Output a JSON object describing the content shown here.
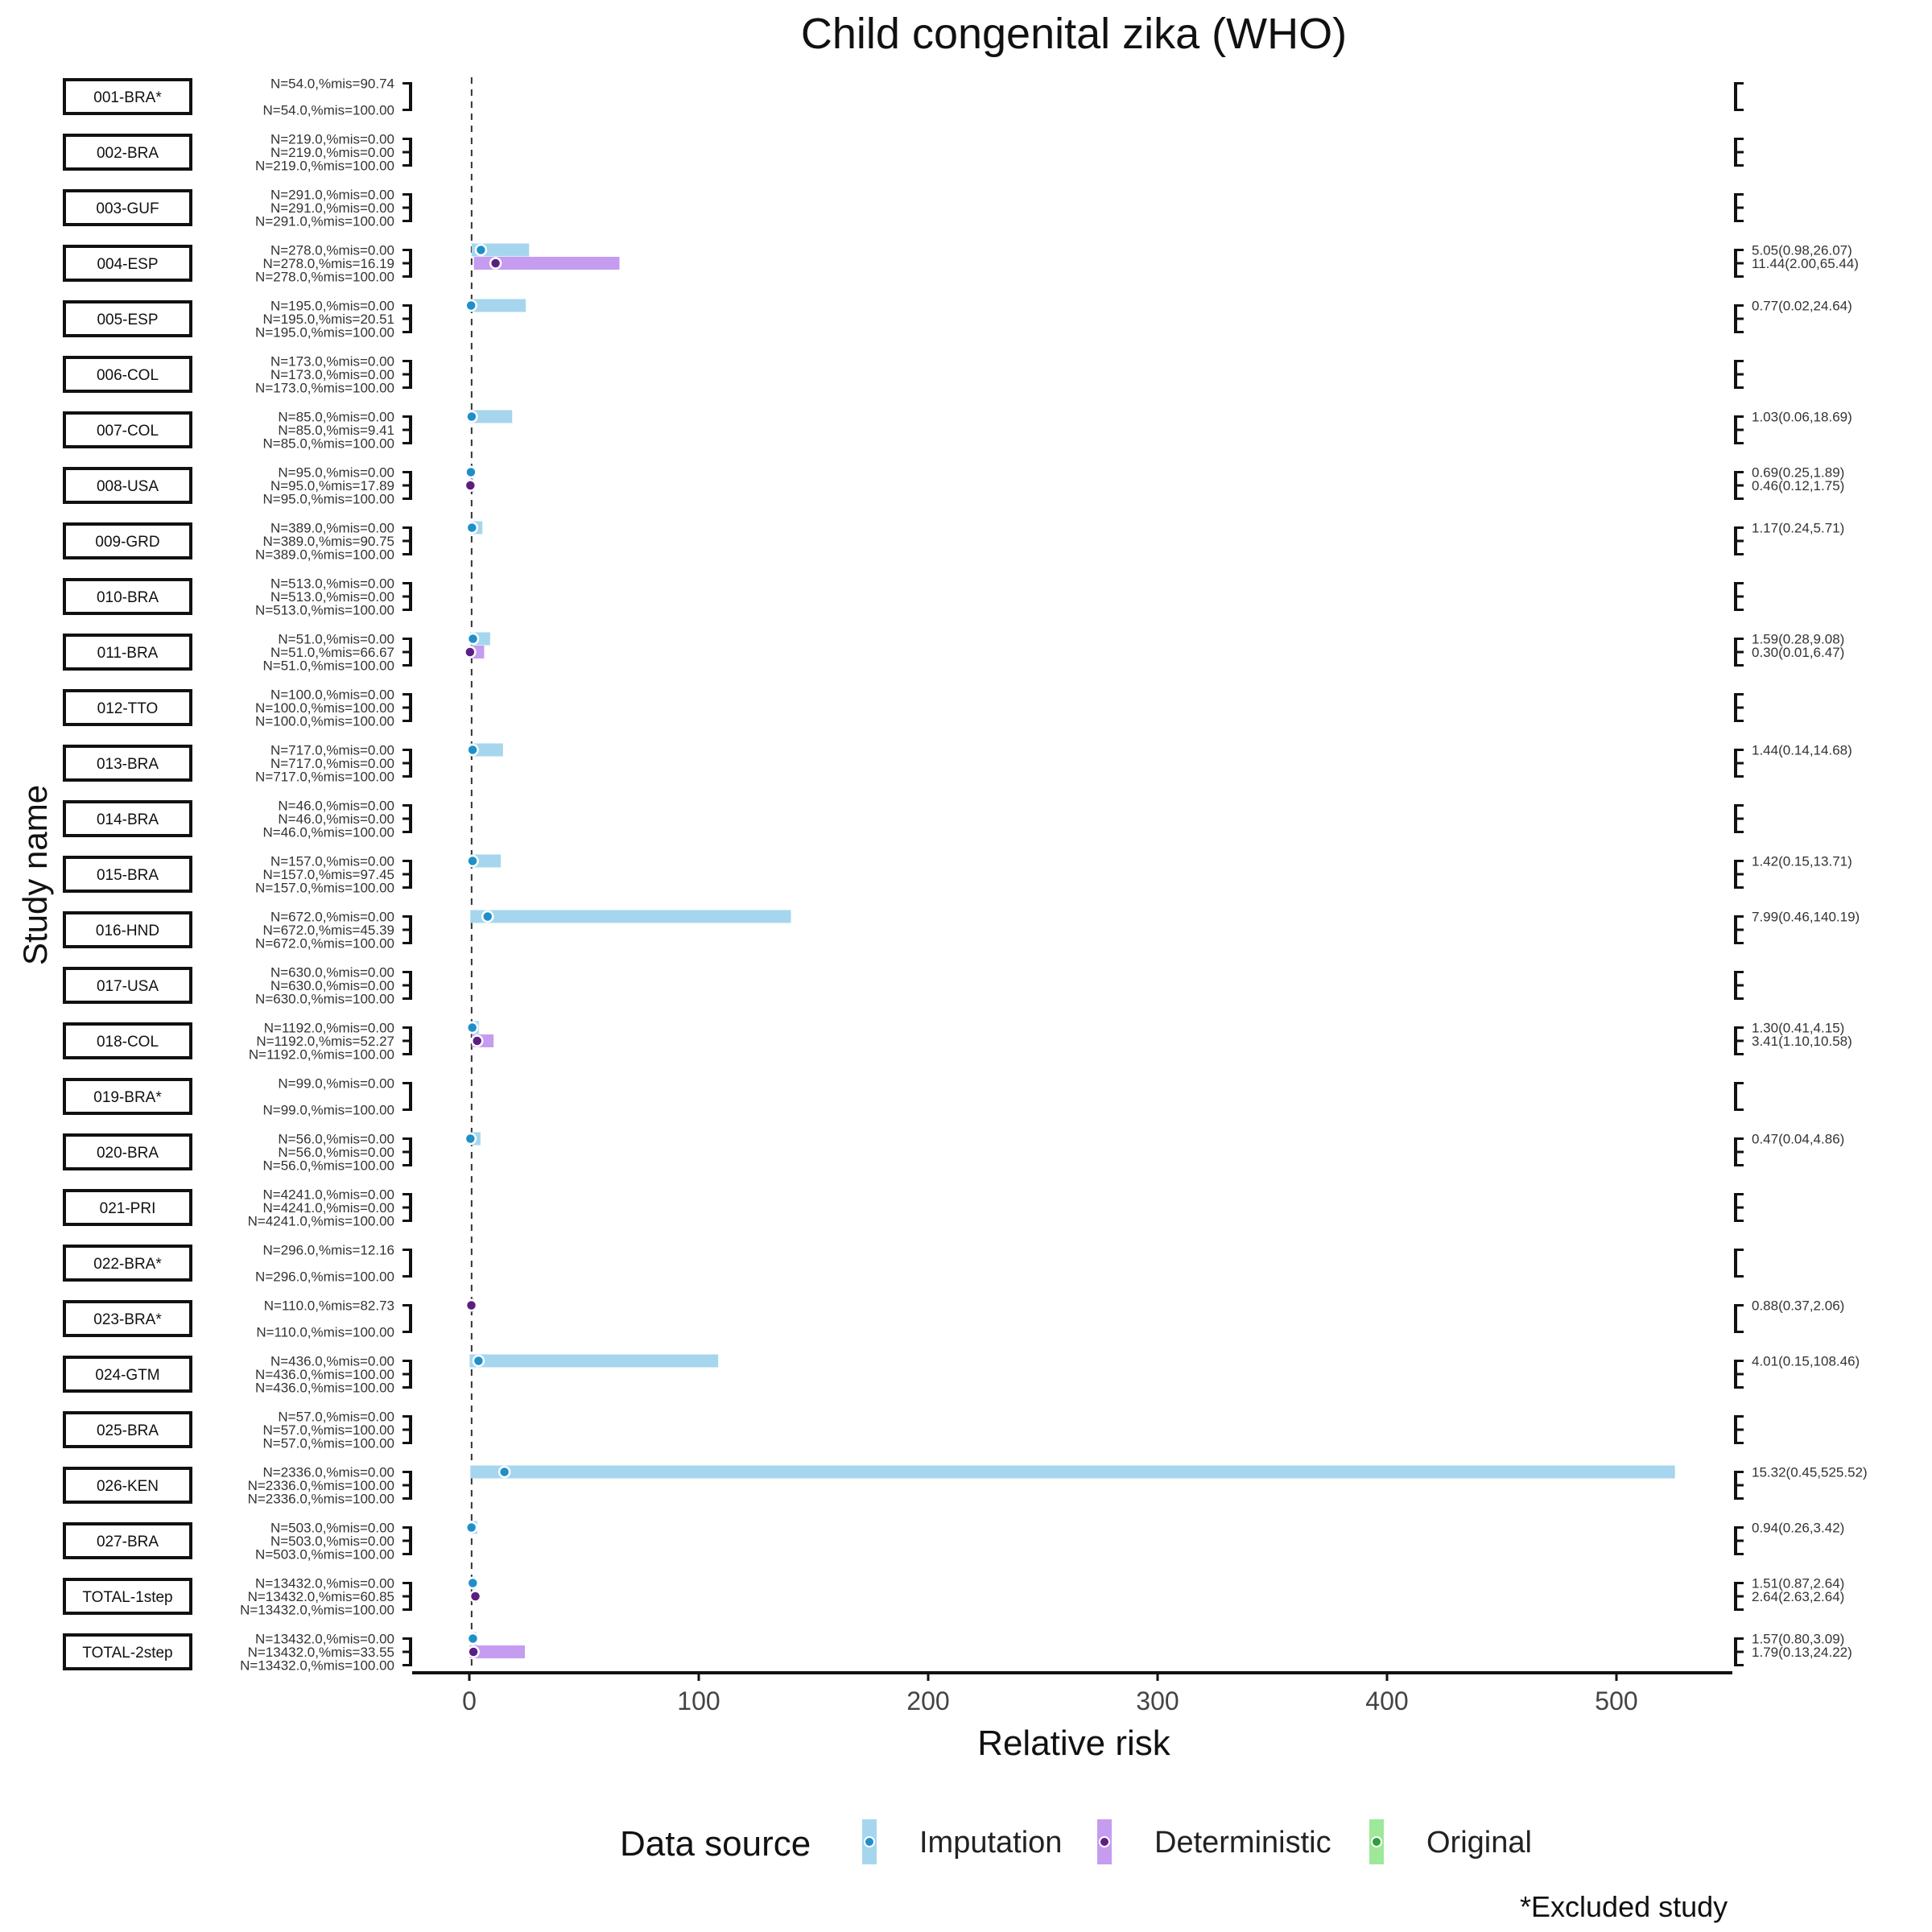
{
  "chart_data": {
    "type": "forest",
    "title": "Child congenital zika (WHO)",
    "xlabel": "Relative risk",
    "ylabel": "Study name",
    "xlim": [
      -25,
      550
    ],
    "xticks": [
      0,
      100,
      200,
      300,
      400,
      500
    ],
    "reference_line": 1,
    "grid": false,
    "legend": {
      "title": "Data source",
      "position": "bottom",
      "items": [
        {
          "name": "Imputation",
          "bar_color": "#a6d6ee",
          "point_color": "#1f8fc9"
        },
        {
          "name": "Deterministic",
          "bar_color": "#c59cf0",
          "point_color": "#5b1f80"
        },
        {
          "name": "Original",
          "bar_color": "#9ee89a",
          "point_color": "#2f9e3a"
        }
      ]
    },
    "footnote": "*Excluded study",
    "studies": [
      {
        "name": "001-BRA*",
        "rows": [
          {
            "label": "N=54.0,%mis=90.74",
            "source": "Deterministic",
            "est": null,
            "lo": null,
            "hi": null,
            "text": ""
          },
          {
            "label": "N=54.0,%mis=100.00",
            "source": "Original",
            "est": null,
            "lo": null,
            "hi": null,
            "text": ""
          }
        ]
      },
      {
        "name": "002-BRA",
        "rows": [
          {
            "label": "N=219.0,%mis=0.00",
            "source": "Imputation",
            "est": null,
            "lo": null,
            "hi": null,
            "text": ""
          },
          {
            "label": "N=219.0,%mis=0.00",
            "source": "Deterministic",
            "est": null,
            "lo": null,
            "hi": null,
            "text": ""
          },
          {
            "label": "N=219.0,%mis=100.00",
            "source": "Original",
            "est": null,
            "lo": null,
            "hi": null,
            "text": ""
          }
        ]
      },
      {
        "name": "003-GUF",
        "rows": [
          {
            "label": "N=291.0,%mis=0.00",
            "source": "Imputation",
            "est": null,
            "lo": null,
            "hi": null,
            "text": ""
          },
          {
            "label": "N=291.0,%mis=0.00",
            "source": "Deterministic",
            "est": null,
            "lo": null,
            "hi": null,
            "text": ""
          },
          {
            "label": "N=291.0,%mis=100.00",
            "source": "Original",
            "est": null,
            "lo": null,
            "hi": null,
            "text": ""
          }
        ]
      },
      {
        "name": "004-ESP",
        "rows": [
          {
            "label": "N=278.0,%mis=0.00",
            "source": "Imputation",
            "est": 5.05,
            "lo": 0.98,
            "hi": 26.07,
            "text": "5.05(0.98,26.07)"
          },
          {
            "label": "N=278.0,%mis=16.19",
            "source": "Deterministic",
            "est": 11.44,
            "lo": 2.0,
            "hi": 65.44,
            "text": "11.44(2.00,65.44)"
          },
          {
            "label": "N=278.0,%mis=100.00",
            "source": "Original",
            "est": null,
            "lo": null,
            "hi": null,
            "text": ""
          }
        ]
      },
      {
        "name": "005-ESP",
        "rows": [
          {
            "label": "N=195.0,%mis=0.00",
            "source": "Imputation",
            "est": 0.77,
            "lo": 0.02,
            "hi": 24.64,
            "text": "0.77(0.02,24.64)"
          },
          {
            "label": "N=195.0,%mis=20.51",
            "source": "Deterministic",
            "est": null,
            "lo": null,
            "hi": null,
            "text": ""
          },
          {
            "label": "N=195.0,%mis=100.00",
            "source": "Original",
            "est": null,
            "lo": null,
            "hi": null,
            "text": ""
          }
        ]
      },
      {
        "name": "006-COL",
        "rows": [
          {
            "label": "N=173.0,%mis=0.00",
            "source": "Imputation",
            "est": null,
            "lo": null,
            "hi": null,
            "text": ""
          },
          {
            "label": "N=173.0,%mis=0.00",
            "source": "Deterministic",
            "est": null,
            "lo": null,
            "hi": null,
            "text": ""
          },
          {
            "label": "N=173.0,%mis=100.00",
            "source": "Original",
            "est": null,
            "lo": null,
            "hi": null,
            "text": ""
          }
        ]
      },
      {
        "name": "007-COL",
        "rows": [
          {
            "label": "N=85.0,%mis=0.00",
            "source": "Imputation",
            "est": 1.03,
            "lo": 0.06,
            "hi": 18.69,
            "text": "1.03(0.06,18.69)"
          },
          {
            "label": "N=85.0,%mis=9.41",
            "source": "Deterministic",
            "est": null,
            "lo": null,
            "hi": null,
            "text": ""
          },
          {
            "label": "N=85.0,%mis=100.00",
            "source": "Original",
            "est": null,
            "lo": null,
            "hi": null,
            "text": ""
          }
        ]
      },
      {
        "name": "008-USA",
        "rows": [
          {
            "label": "N=95.0,%mis=0.00",
            "source": "Imputation",
            "est": 0.69,
            "lo": 0.25,
            "hi": 1.89,
            "text": "0.69(0.25,1.89)"
          },
          {
            "label": "N=95.0,%mis=17.89",
            "source": "Deterministic",
            "est": 0.46,
            "lo": 0.12,
            "hi": 1.75,
            "text": "0.46(0.12,1.75)"
          },
          {
            "label": "N=95.0,%mis=100.00",
            "source": "Original",
            "est": null,
            "lo": null,
            "hi": null,
            "text": ""
          }
        ]
      },
      {
        "name": "009-GRD",
        "rows": [
          {
            "label": "N=389.0,%mis=0.00",
            "source": "Imputation",
            "est": 1.17,
            "lo": 0.24,
            "hi": 5.71,
            "text": "1.17(0.24,5.71)"
          },
          {
            "label": "N=389.0,%mis=90.75",
            "source": "Deterministic",
            "est": null,
            "lo": null,
            "hi": null,
            "text": ""
          },
          {
            "label": "N=389.0,%mis=100.00",
            "source": "Original",
            "est": null,
            "lo": null,
            "hi": null,
            "text": ""
          }
        ]
      },
      {
        "name": "010-BRA",
        "rows": [
          {
            "label": "N=513.0,%mis=0.00",
            "source": "Imputation",
            "est": null,
            "lo": null,
            "hi": null,
            "text": ""
          },
          {
            "label": "N=513.0,%mis=0.00",
            "source": "Deterministic",
            "est": null,
            "lo": null,
            "hi": null,
            "text": ""
          },
          {
            "label": "N=513.0,%mis=100.00",
            "source": "Original",
            "est": null,
            "lo": null,
            "hi": null,
            "text": ""
          }
        ]
      },
      {
        "name": "011-BRA",
        "rows": [
          {
            "label": "N=51.0,%mis=0.00",
            "source": "Imputation",
            "est": 1.59,
            "lo": 0.28,
            "hi": 9.08,
            "text": "1.59(0.28,9.08)"
          },
          {
            "label": "N=51.0,%mis=66.67",
            "source": "Deterministic",
            "est": 0.3,
            "lo": 0.01,
            "hi": 6.47,
            "text": "0.30(0.01,6.47)"
          },
          {
            "label": "N=51.0,%mis=100.00",
            "source": "Original",
            "est": null,
            "lo": null,
            "hi": null,
            "text": ""
          }
        ]
      },
      {
        "name": "012-TTO",
        "rows": [
          {
            "label": "N=100.0,%mis=0.00",
            "source": "Imputation",
            "est": null,
            "lo": null,
            "hi": null,
            "text": ""
          },
          {
            "label": "N=100.0,%mis=100.00",
            "source": "Deterministic",
            "est": null,
            "lo": null,
            "hi": null,
            "text": ""
          },
          {
            "label": "N=100.0,%mis=100.00",
            "source": "Original",
            "est": null,
            "lo": null,
            "hi": null,
            "text": ""
          }
        ]
      },
      {
        "name": "013-BRA",
        "rows": [
          {
            "label": "N=717.0,%mis=0.00",
            "source": "Imputation",
            "est": 1.44,
            "lo": 0.14,
            "hi": 14.68,
            "text": "1.44(0.14,14.68)"
          },
          {
            "label": "N=717.0,%mis=0.00",
            "source": "Deterministic",
            "est": null,
            "lo": null,
            "hi": null,
            "text": ""
          },
          {
            "label": "N=717.0,%mis=100.00",
            "source": "Original",
            "est": null,
            "lo": null,
            "hi": null,
            "text": ""
          }
        ]
      },
      {
        "name": "014-BRA",
        "rows": [
          {
            "label": "N=46.0,%mis=0.00",
            "source": "Imputation",
            "est": null,
            "lo": null,
            "hi": null,
            "text": ""
          },
          {
            "label": "N=46.0,%mis=0.00",
            "source": "Deterministic",
            "est": null,
            "lo": null,
            "hi": null,
            "text": ""
          },
          {
            "label": "N=46.0,%mis=100.00",
            "source": "Original",
            "est": null,
            "lo": null,
            "hi": null,
            "text": ""
          }
        ]
      },
      {
        "name": "015-BRA",
        "rows": [
          {
            "label": "N=157.0,%mis=0.00",
            "source": "Imputation",
            "est": 1.42,
            "lo": 0.15,
            "hi": 13.71,
            "text": "1.42(0.15,13.71)"
          },
          {
            "label": "N=157.0,%mis=97.45",
            "source": "Deterministic",
            "est": null,
            "lo": null,
            "hi": null,
            "text": ""
          },
          {
            "label": "N=157.0,%mis=100.00",
            "source": "Original",
            "est": null,
            "lo": null,
            "hi": null,
            "text": ""
          }
        ]
      },
      {
        "name": "016-HND",
        "rows": [
          {
            "label": "N=672.0,%mis=0.00",
            "source": "Imputation",
            "est": 7.99,
            "lo": 0.46,
            "hi": 140.19,
            "text": "7.99(0.46,140.19)"
          },
          {
            "label": "N=672.0,%mis=45.39",
            "source": "Deterministic",
            "est": null,
            "lo": null,
            "hi": null,
            "text": ""
          },
          {
            "label": "N=672.0,%mis=100.00",
            "source": "Original",
            "est": null,
            "lo": null,
            "hi": null,
            "text": ""
          }
        ]
      },
      {
        "name": "017-USA",
        "rows": [
          {
            "label": "N=630.0,%mis=0.00",
            "source": "Imputation",
            "est": null,
            "lo": null,
            "hi": null,
            "text": ""
          },
          {
            "label": "N=630.0,%mis=0.00",
            "source": "Deterministic",
            "est": null,
            "lo": null,
            "hi": null,
            "text": ""
          },
          {
            "label": "N=630.0,%mis=100.00",
            "source": "Original",
            "est": null,
            "lo": null,
            "hi": null,
            "text": ""
          }
        ]
      },
      {
        "name": "018-COL",
        "rows": [
          {
            "label": "N=1192.0,%mis=0.00",
            "source": "Imputation",
            "est": 1.3,
            "lo": 0.41,
            "hi": 4.15,
            "text": "1.30(0.41,4.15)"
          },
          {
            "label": "N=1192.0,%mis=52.27",
            "source": "Deterministic",
            "est": 3.41,
            "lo": 1.1,
            "hi": 10.58,
            "text": "3.41(1.10,10.58)"
          },
          {
            "label": "N=1192.0,%mis=100.00",
            "source": "Original",
            "est": null,
            "lo": null,
            "hi": null,
            "text": ""
          }
        ]
      },
      {
        "name": "019-BRA*",
        "rows": [
          {
            "label": "N=99.0,%mis=0.00",
            "source": "Imputation",
            "est": null,
            "lo": null,
            "hi": null,
            "text": ""
          },
          {
            "label": "N=99.0,%mis=100.00",
            "source": "Original",
            "est": null,
            "lo": null,
            "hi": null,
            "text": ""
          }
        ]
      },
      {
        "name": "020-BRA",
        "rows": [
          {
            "label": "N=56.0,%mis=0.00",
            "source": "Imputation",
            "est": 0.47,
            "lo": 0.04,
            "hi": 4.86,
            "text": "0.47(0.04,4.86)"
          },
          {
            "label": "N=56.0,%mis=0.00",
            "source": "Deterministic",
            "est": null,
            "lo": null,
            "hi": null,
            "text": ""
          },
          {
            "label": "N=56.0,%mis=100.00",
            "source": "Original",
            "est": null,
            "lo": null,
            "hi": null,
            "text": ""
          }
        ]
      },
      {
        "name": "021-PRI",
        "rows": [
          {
            "label": "N=4241.0,%mis=0.00",
            "source": "Imputation",
            "est": null,
            "lo": null,
            "hi": null,
            "text": ""
          },
          {
            "label": "N=4241.0,%mis=0.00",
            "source": "Deterministic",
            "est": null,
            "lo": null,
            "hi": null,
            "text": ""
          },
          {
            "label": "N=4241.0,%mis=100.00",
            "source": "Original",
            "est": null,
            "lo": null,
            "hi": null,
            "text": ""
          }
        ]
      },
      {
        "name": "022-BRA*",
        "rows": [
          {
            "label": "N=296.0,%mis=12.16",
            "source": "Deterministic",
            "est": null,
            "lo": null,
            "hi": null,
            "text": ""
          },
          {
            "label": "N=296.0,%mis=100.00",
            "source": "Original",
            "est": null,
            "lo": null,
            "hi": null,
            "text": ""
          }
        ]
      },
      {
        "name": "023-BRA*",
        "rows": [
          {
            "label": "N=110.0,%mis=82.73",
            "source": "Deterministic",
            "est": 0.88,
            "lo": 0.37,
            "hi": 2.06,
            "text": "0.88(0.37,2.06)"
          },
          {
            "label": "N=110.0,%mis=100.00",
            "source": "Original",
            "est": null,
            "lo": null,
            "hi": null,
            "text": ""
          }
        ]
      },
      {
        "name": "024-GTM",
        "rows": [
          {
            "label": "N=436.0,%mis=0.00",
            "source": "Imputation",
            "est": 4.01,
            "lo": 0.15,
            "hi": 108.46,
            "text": "4.01(0.15,108.46)"
          },
          {
            "label": "N=436.0,%mis=100.00",
            "source": "Deterministic",
            "est": null,
            "lo": null,
            "hi": null,
            "text": ""
          },
          {
            "label": "N=436.0,%mis=100.00",
            "source": "Original",
            "est": null,
            "lo": null,
            "hi": null,
            "text": ""
          }
        ]
      },
      {
        "name": "025-BRA",
        "rows": [
          {
            "label": "N=57.0,%mis=0.00",
            "source": "Imputation",
            "est": null,
            "lo": null,
            "hi": null,
            "text": ""
          },
          {
            "label": "N=57.0,%mis=100.00",
            "source": "Deterministic",
            "est": null,
            "lo": null,
            "hi": null,
            "text": ""
          },
          {
            "label": "N=57.0,%mis=100.00",
            "source": "Original",
            "est": null,
            "lo": null,
            "hi": null,
            "text": ""
          }
        ]
      },
      {
        "name": "026-KEN",
        "rows": [
          {
            "label": "N=2336.0,%mis=0.00",
            "source": "Imputation",
            "est": 15.32,
            "lo": 0.45,
            "hi": 525.52,
            "text": "15.32(0.45,525.52)"
          },
          {
            "label": "N=2336.0,%mis=100.00",
            "source": "Deterministic",
            "est": null,
            "lo": null,
            "hi": null,
            "text": ""
          },
          {
            "label": "N=2336.0,%mis=100.00",
            "source": "Original",
            "est": null,
            "lo": null,
            "hi": null,
            "text": ""
          }
        ]
      },
      {
        "name": "027-BRA",
        "rows": [
          {
            "label": "N=503.0,%mis=0.00",
            "source": "Imputation",
            "est": 0.94,
            "lo": 0.26,
            "hi": 3.42,
            "text": "0.94(0.26,3.42)"
          },
          {
            "label": "N=503.0,%mis=0.00",
            "source": "Deterministic",
            "est": null,
            "lo": null,
            "hi": null,
            "text": ""
          },
          {
            "label": "N=503.0,%mis=100.00",
            "source": "Original",
            "est": null,
            "lo": null,
            "hi": null,
            "text": ""
          }
        ]
      },
      {
        "name": "TOTAL-1step",
        "rows": [
          {
            "label": "N=13432.0,%mis=0.00",
            "source": "Imputation",
            "est": 1.51,
            "lo": 0.87,
            "hi": 2.64,
            "text": "1.51(0.87,2.64)"
          },
          {
            "label": "N=13432.0,%mis=60.85",
            "source": "Deterministic",
            "est": 2.64,
            "lo": 2.63,
            "hi": 2.64,
            "text": "2.64(2.63,2.64)"
          },
          {
            "label": "N=13432.0,%mis=100.00",
            "source": "Original",
            "est": null,
            "lo": null,
            "hi": null,
            "text": ""
          }
        ]
      },
      {
        "name": "TOTAL-2step",
        "rows": [
          {
            "label": "N=13432.0,%mis=0.00",
            "source": "Imputation",
            "est": 1.57,
            "lo": 0.8,
            "hi": 3.09,
            "text": "1.57(0.80,3.09)"
          },
          {
            "label": "N=13432.0,%mis=33.55",
            "source": "Deterministic",
            "est": 1.79,
            "lo": 0.13,
            "hi": 24.22,
            "text": "1.79(0.13,24.22)"
          },
          {
            "label": "N=13432.0,%mis=100.00",
            "source": "Original",
            "est": null,
            "lo": null,
            "hi": null,
            "text": ""
          }
        ]
      }
    ]
  }
}
